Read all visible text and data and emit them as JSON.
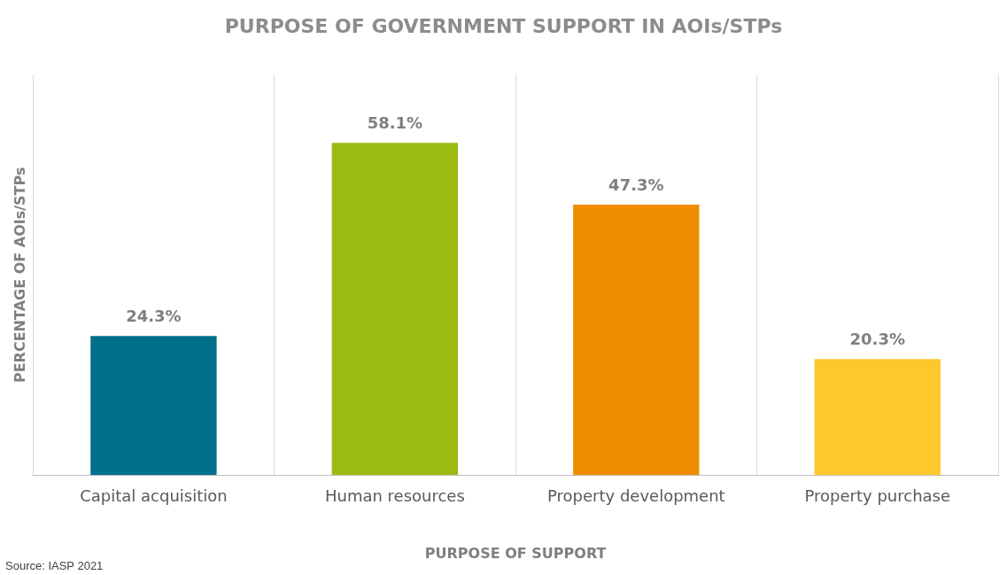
{
  "chart_data": {
    "type": "bar",
    "title": "PURPOSE OF GOVERNMENT SUPPORT IN AOIs/STPs",
    "xlabel": "PURPOSE OF SUPPORT",
    "ylabel": "PERCENTAGE OF AOIs/STPs",
    "categories": [
      "Capital acquisition",
      "Human resources",
      "Property development",
      "Property purchase"
    ],
    "values": [
      24.3,
      58.1,
      47.3,
      20.3
    ],
    "colors": [
      "#00708a",
      "#9bbb12",
      "#ef8c00",
      "#fdc82c"
    ],
    "value_labels": [
      "24.3%",
      "58.1%",
      "47.3%",
      "20.3%"
    ],
    "ylim": [
      0,
      70
    ],
    "tick_labels": "x",
    "grid": "x",
    "legend": false,
    "annotations": [
      "Source: IASP 2021"
    ]
  }
}
